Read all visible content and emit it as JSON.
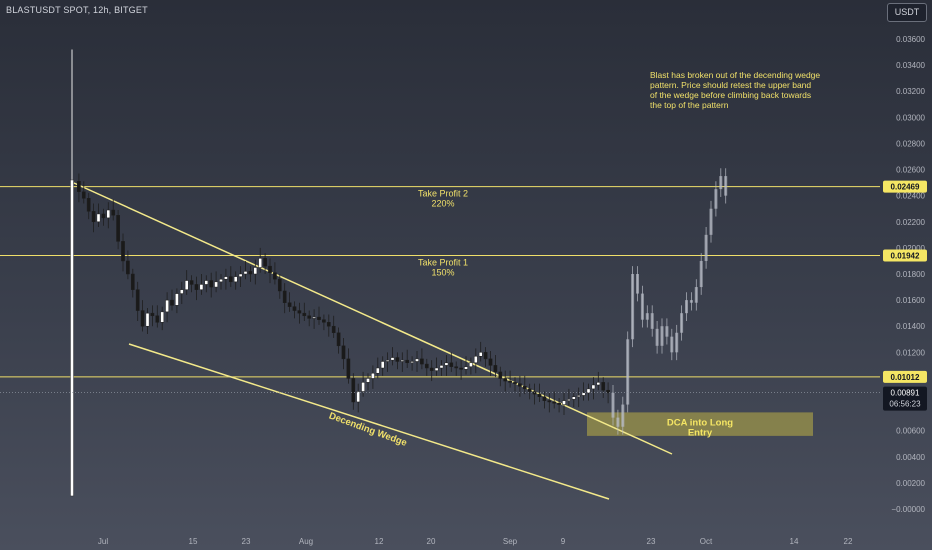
{
  "header": {
    "symbol_line": "BLASTUSDT SPOT, 12h, BITGET",
    "currency": "USDT"
  },
  "colors": {
    "accent_yellow": "#f0e06a",
    "candle_up": "#ffffff",
    "candle_down": "#1a1a1a",
    "projection": "#b8bcc6",
    "badge_yellow": "#f5e664",
    "price_badge": "#131722"
  },
  "chart_data": {
    "type": "candlestick",
    "y_axis": {
      "ticks": [
        "0.03600",
        "0.03400",
        "0.03200",
        "0.03000",
        "0.02800",
        "0.02600",
        "0.02400",
        "0.02200",
        "0.02000",
        "0.01800",
        "0.01600",
        "0.01400",
        "0.01200",
        "0.01000",
        "0.00800",
        "0.00600",
        "0.00400",
        "0.00200",
        "−0.00000"
      ],
      "range": [
        -0.0001,
        0.0373
      ]
    },
    "x_axis": {
      "ticks": [
        "Jul",
        "15",
        "23",
        "Aug",
        "12",
        "20",
        "Sep",
        "9",
        "23",
        "Oct",
        "14",
        "22"
      ]
    },
    "horizontal_levels": [
      {
        "label": "Take Profit 2",
        "sublabel": "220%",
        "price": 0.02469,
        "price_label": "0.02469"
      },
      {
        "label": "Take Profit 1",
        "sublabel": "150%",
        "price": 0.01942,
        "price_label": "0.01942"
      },
      {
        "label": "",
        "sublabel": "",
        "price": 0.01012,
        "price_label": "0.01012"
      }
    ],
    "last_price": {
      "value": "0.00891",
      "countdown": "06:56:23"
    },
    "wedge_label": "Decending Wedge",
    "entry_box": {
      "label": "DCA into Long",
      "sublabel": "Entry",
      "price_low": 0.0056,
      "price_high": 0.0074
    },
    "annotation": "Blast has broken out of the decending wedge pattern.  Price should retest the upper band of the wedge before climbing back towards the top of the pattern",
    "close_path": [
      [
        0,
        0.0251
      ],
      [
        1,
        0.0243
      ],
      [
        2,
        0.0238
      ],
      [
        3,
        0.0228
      ],
      [
        4,
        0.022
      ],
      [
        5,
        0.0226
      ],
      [
        6,
        0.0223
      ],
      [
        7,
        0.0229
      ],
      [
        8,
        0.0225
      ],
      [
        9,
        0.0205
      ],
      [
        10,
        0.019
      ],
      [
        11,
        0.018
      ],
      [
        12,
        0.0168
      ],
      [
        13,
        0.0152
      ],
      [
        14,
        0.014
      ],
      [
        15,
        0.015
      ],
      [
        16,
        0.0148
      ],
      [
        17,
        0.0143
      ],
      [
        18,
        0.0151
      ],
      [
        19,
        0.016
      ],
      [
        20,
        0.0156
      ],
      [
        21,
        0.0165
      ],
      [
        22,
        0.0168
      ],
      [
        23,
        0.0175
      ],
      [
        24,
        0.0172
      ],
      [
        25,
        0.0168
      ],
      [
        26,
        0.0172
      ],
      [
        27,
        0.0175
      ],
      [
        28,
        0.017
      ],
      [
        29,
        0.0174
      ],
      [
        30,
        0.0176
      ],
      [
        31,
        0.0178
      ],
      [
        32,
        0.0174
      ],
      [
        33,
        0.0178
      ],
      [
        34,
        0.018
      ],
      [
        35,
        0.0182
      ],
      [
        36,
        0.018
      ],
      [
        37,
        0.0185
      ],
      [
        38,
        0.0192
      ],
      [
        39,
        0.0186
      ],
      [
        40,
        0.0181
      ],
      [
        41,
        0.0176
      ],
      [
        42,
        0.0167
      ],
      [
        43,
        0.0158
      ],
      [
        44,
        0.0155
      ],
      [
        45,
        0.0152
      ],
      [
        46,
        0.015
      ],
      [
        47,
        0.0148
      ],
      [
        48,
        0.0146
      ],
      [
        49,
        0.0147
      ],
      [
        50,
        0.0145
      ],
      [
        51,
        0.0143
      ],
      [
        52,
        0.014
      ],
      [
        53,
        0.0135
      ],
      [
        54,
        0.0125
      ],
      [
        55,
        0.0115
      ],
      [
        56,
        0.01
      ],
      [
        57,
        0.0082
      ],
      [
        58,
        0.009
      ],
      [
        59,
        0.0097
      ],
      [
        60,
        0.01
      ],
      [
        61,
        0.0104
      ],
      [
        62,
        0.0108
      ],
      [
        63,
        0.0113
      ],
      [
        64,
        0.0114
      ],
      [
        65,
        0.0116
      ],
      [
        66,
        0.0113
      ],
      [
        67,
        0.0114
      ],
      [
        68,
        0.0112
      ],
      [
        69,
        0.0113
      ],
      [
        70,
        0.0115
      ],
      [
        71,
        0.0111
      ],
      [
        72,
        0.0108
      ],
      [
        73,
        0.0106
      ],
      [
        74,
        0.0108
      ],
      [
        75,
        0.011
      ],
      [
        76,
        0.0112
      ],
      [
        77,
        0.0109
      ],
      [
        78,
        0.0108
      ],
      [
        79,
        0.0107
      ],
      [
        80,
        0.0109
      ],
      [
        81,
        0.0112
      ],
      [
        82,
        0.0117
      ],
      [
        83,
        0.012
      ],
      [
        84,
        0.0115
      ],
      [
        85,
        0.011
      ],
      [
        86,
        0.0105
      ],
      [
        87,
        0.01
      ],
      [
        88,
        0.0098
      ],
      [
        89,
        0.0097
      ],
      [
        90,
        0.0096
      ],
      [
        91,
        0.0094
      ],
      [
        92,
        0.0092
      ],
      [
        93,
        0.009
      ],
      [
        94,
        0.0088
      ],
      [
        95,
        0.0086
      ],
      [
        96,
        0.0083
      ],
      [
        97,
        0.0082
      ],
      [
        98,
        0.0081
      ],
      [
        99,
        0.008
      ],
      [
        100,
        0.0083
      ],
      [
        101,
        0.0084
      ],
      [
        102,
        0.0086
      ],
      [
        103,
        0.0087
      ],
      [
        104,
        0.0089
      ],
      [
        105,
        0.0092
      ],
      [
        106,
        0.0095
      ],
      [
        107,
        0.0097
      ],
      [
        108,
        0.0091
      ],
      [
        109,
        0.0089
      ]
    ],
    "projection_path": [
      [
        110,
        0.007
      ],
      [
        111,
        0.0063
      ],
      [
        112,
        0.008
      ],
      [
        113,
        0.013
      ],
      [
        114,
        0.018
      ],
      [
        115,
        0.0165
      ],
      [
        116,
        0.0145
      ],
      [
        117,
        0.015
      ],
      [
        118,
        0.0138
      ],
      [
        119,
        0.0125
      ],
      [
        120,
        0.014
      ],
      [
        121,
        0.0132
      ],
      [
        122,
        0.012
      ],
      [
        123,
        0.0135
      ],
      [
        124,
        0.015
      ],
      [
        125,
        0.016
      ],
      [
        126,
        0.0158
      ],
      [
        127,
        0.017
      ],
      [
        128,
        0.019
      ],
      [
        129,
        0.021
      ],
      [
        130,
        0.023
      ],
      [
        131,
        0.0245
      ],
      [
        132,
        0.0255
      ],
      [
        133,
        0.024
      ]
    ]
  }
}
